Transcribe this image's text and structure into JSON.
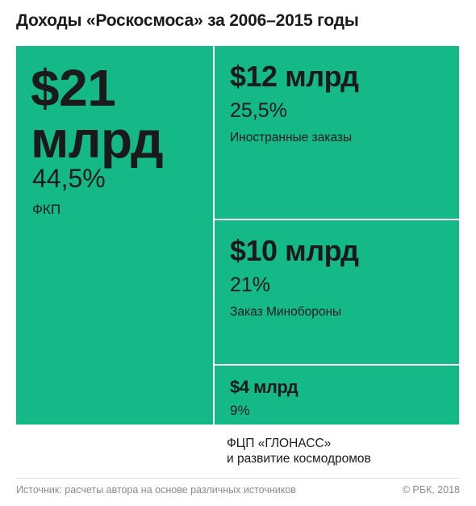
{
  "title": "Доходы «Роскосмоса» за 2006–2015 годы",
  "colors": {
    "tile": "#14b987",
    "text": "#1a1a1a",
    "footer_text": "#8a8a8a",
    "background": "#ffffff"
  },
  "chart_data": {
    "type": "treemap",
    "title": "Доходы «Роскосмоса» за 2006–2015 годы",
    "unit": "млрд $",
    "items": [
      {
        "amount_label": "$21 млрд",
        "value": 21,
        "percent_label": "44,5%",
        "percent": 44.5,
        "label": "ФКП"
      },
      {
        "amount_label": "$12 млрд",
        "value": 12,
        "percent_label": "25,5%",
        "percent": 25.5,
        "label": "Иностранные заказы"
      },
      {
        "amount_label": "$10 млрд",
        "value": 10,
        "percent_label": "21%",
        "percent": 21,
        "label": "Заказ Минобороны"
      },
      {
        "amount_label": "$4 млрд",
        "value": 4,
        "percent_label": "9%",
        "percent": 9,
        "label_lines": [
          "ФЦП «ГЛОНАСС»",
          "и развитие космодромов"
        ]
      }
    ]
  },
  "footer": {
    "source": "Источник: расчеты автора на основе различных источников",
    "copyright": "© РБК, 2018"
  }
}
